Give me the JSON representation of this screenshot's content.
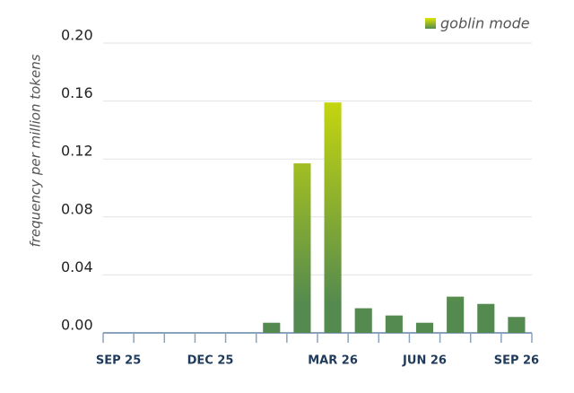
{
  "chart_data": {
    "type": "bar",
    "y_label": "frequency per million tokens",
    "categories": [
      "SEP 25",
      null,
      null,
      "DEC 25",
      null,
      null,
      null,
      "MAR 26",
      null,
      null,
      "JUN 26",
      null,
      null,
      "SEP 26"
    ],
    "series": [
      {
        "name": "goblin mode",
        "color": "#548a4f",
        "highlight_color": "#dde600",
        "values": [
          0,
          0,
          0,
          0,
          0,
          0.007,
          0.117,
          0.159,
          0.017,
          0.012,
          0.007,
          0.025,
          0.02,
          0.011
        ]
      }
    ],
    "ylim": [
      0,
      0.2
    ],
    "yticks": [
      {
        "value": 0,
        "label": "0.00"
      },
      {
        "value": 0.04,
        "label": "0.04"
      },
      {
        "value": 0.08,
        "label": "0.08"
      },
      {
        "value": 0.12,
        "label": "0.12"
      },
      {
        "value": 0.16,
        "label": "0.16"
      },
      {
        "value": 0.2,
        "label": "0.20"
      }
    ],
    "grid": true,
    "legend": "top-right"
  }
}
